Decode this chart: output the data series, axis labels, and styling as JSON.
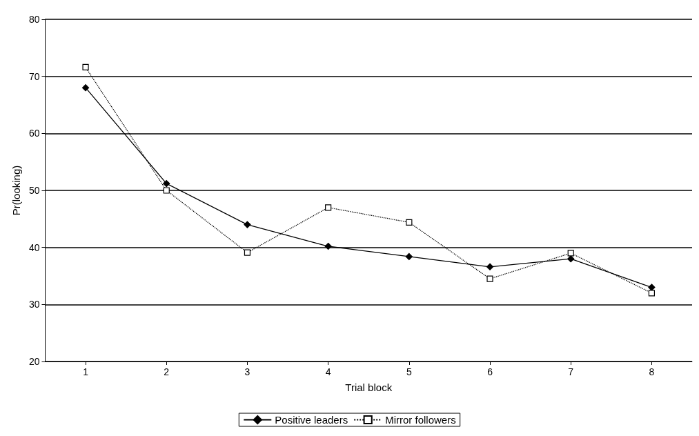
{
  "chart_data": {
    "type": "line",
    "xlabel": "Trial block",
    "ylabel": "Pr(looking)",
    "categories": [
      "1",
      "2",
      "3",
      "4",
      "5",
      "6",
      "7",
      "8"
    ],
    "series": [
      {
        "name": "Positive leaders",
        "color": "#000000",
        "marker": "diamond",
        "line_style": "solid",
        "values": [
          68,
          51.2,
          44,
          40.2,
          38.4,
          36.6,
          38,
          33
        ]
      },
      {
        "name": "Mirror followers",
        "color": "#000000",
        "marker": "square",
        "line_style": "dotted",
        "values": [
          71.6,
          50,
          39.1,
          47,
          44.4,
          34.5,
          39,
          32
        ]
      }
    ],
    "ylim": [
      20,
      80
    ],
    "yticks": [
      20,
      30,
      40,
      50,
      60,
      70,
      80
    ],
    "grid": "y",
    "legend": "bottom"
  }
}
